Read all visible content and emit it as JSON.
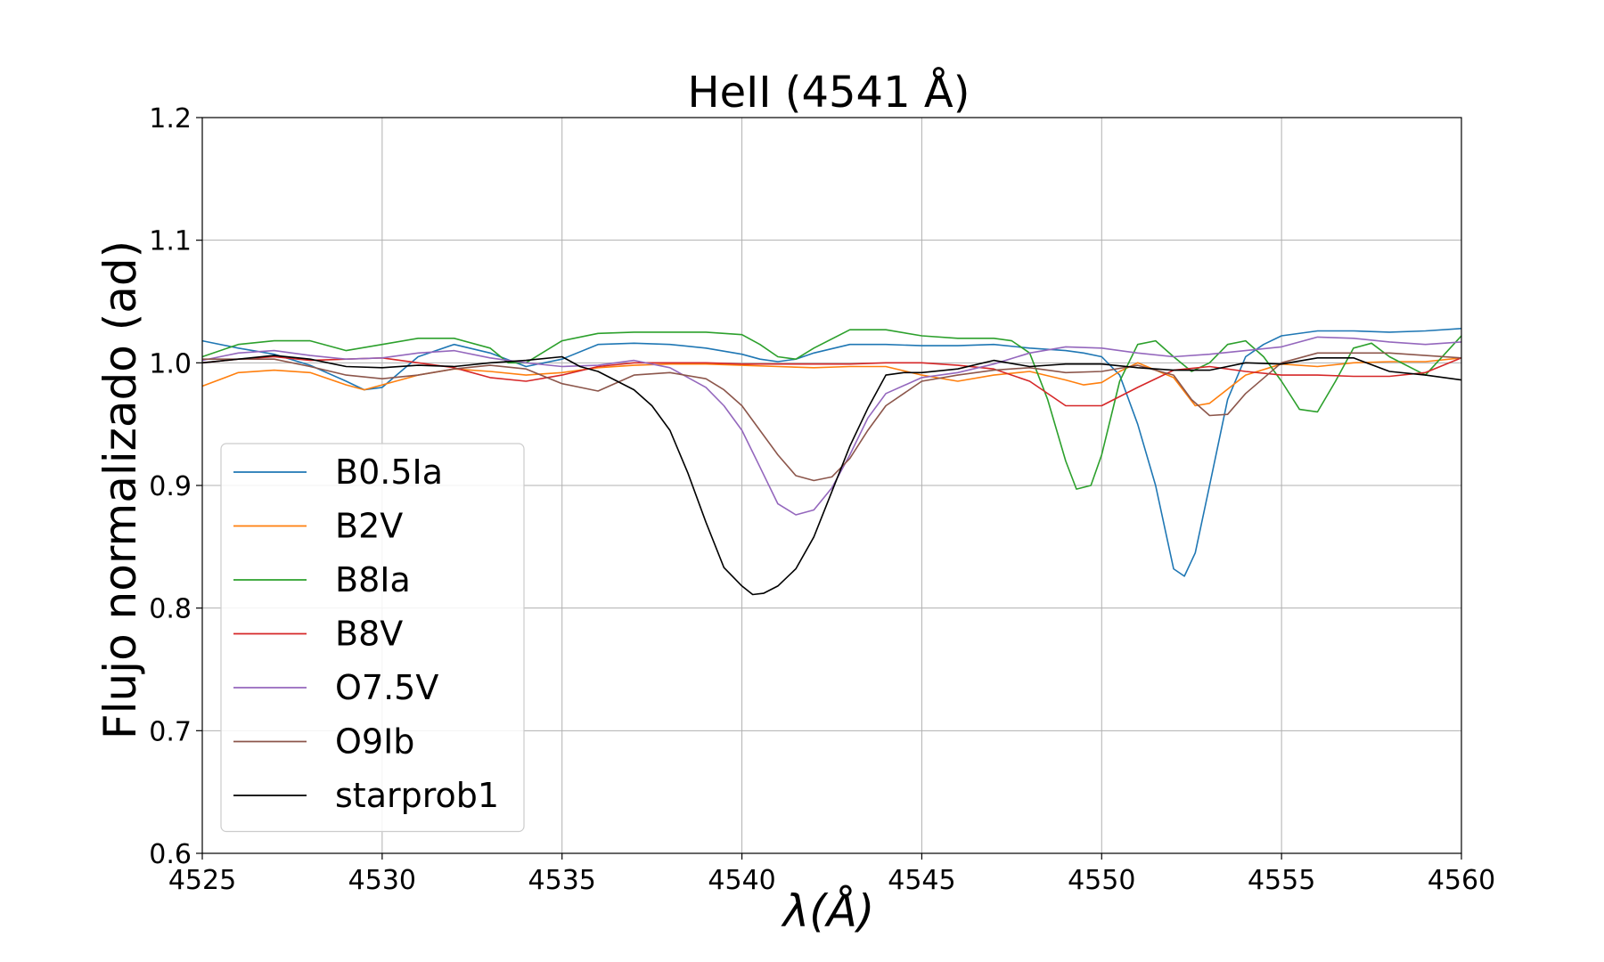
{
  "chart_data": {
    "type": "line",
    "title": "HeII (4541 Å)",
    "xlabel": "λ(Å)",
    "ylabel": "Flujo normalizado (ad)",
    "xlim": [
      4525,
      4560
    ],
    "ylim": [
      0.6,
      1.2
    ],
    "xticks": [
      "4525",
      "4530",
      "4535",
      "4540",
      "4545",
      "4550",
      "4555",
      "4560"
    ],
    "yticks": [
      "0.6",
      "0.7",
      "0.8",
      "0.9",
      "1.0",
      "1.1",
      "1.2"
    ],
    "grid": true,
    "legend_position": "lower-left",
    "series": [
      {
        "name": "B0.5Ia",
        "color": "#1f77b4",
        "x": [
          4525,
          4526,
          4527,
          4528,
          4529,
          4529.5,
          4530,
          4531,
          4532,
          4533,
          4534,
          4535,
          4536,
          4537,
          4538,
          4539,
          4540,
          4540.5,
          4541,
          4541.5,
          4542,
          4543,
          4544,
          4545,
          4546,
          4547,
          4548,
          4549,
          4549.5,
          4550,
          4550.5,
          4551,
          4551.5,
          4552,
          4552.3,
          4552.6,
          4553,
          4553.5,
          4554,
          4554.5,
          4555,
          4556,
          4557,
          4558,
          4559,
          4560
        ],
        "y": [
          1.018,
          1.012,
          1.007,
          0.998,
          0.985,
          0.978,
          0.98,
          1.005,
          1.015,
          1.008,
          0.997,
          1.003,
          1.015,
          1.016,
          1.015,
          1.012,
          1.007,
          1.003,
          1.001,
          1.003,
          1.008,
          1.015,
          1.015,
          1.014,
          1.014,
          1.015,
          1.012,
          1.01,
          1.008,
          1.005,
          0.99,
          0.95,
          0.9,
          0.832,
          0.826,
          0.845,
          0.9,
          0.97,
          1.005,
          1.015,
          1.022,
          1.026,
          1.026,
          1.025,
          1.026,
          1.028
        ]
      },
      {
        "name": "B2V",
        "color": "#ff7f0e",
        "x": [
          4525,
          4526,
          4527,
          4528,
          4529,
          4529.5,
          4530,
          4531,
          4532,
          4533,
          4534,
          4535,
          4536,
          4537,
          4538,
          4539,
          4540,
          4541,
          4542,
          4543,
          4544,
          4545,
          4546,
          4547,
          4548,
          4549,
          4549.5,
          4550,
          4550.5,
          4551,
          4552,
          4552.6,
          4553,
          4554,
          4555,
          4556,
          4557,
          4558,
          4559,
          4560
        ],
        "y": [
          0.981,
          0.992,
          0.994,
          0.992,
          0.982,
          0.978,
          0.982,
          0.99,
          0.995,
          0.993,
          0.99,
          0.992,
          0.996,
          0.998,
          0.999,
          0.999,
          0.998,
          0.997,
          0.996,
          0.997,
          0.997,
          0.99,
          0.985,
          0.99,
          0.993,
          0.986,
          0.982,
          0.984,
          0.993,
          1.0,
          0.988,
          0.965,
          0.967,
          0.99,
          0.999,
          0.997,
          1.0,
          1.001,
          1.001,
          1.004
        ]
      },
      {
        "name": "B8Ia",
        "color": "#2ca02c",
        "x": [
          4525,
          4526,
          4527,
          4528,
          4529,
          4530,
          4531,
          4532,
          4533,
          4533.5,
          4534,
          4535,
          4536,
          4537,
          4538,
          4539,
          4540,
          4540.5,
          4541,
          4541.5,
          4542,
          4543,
          4544,
          4545,
          4546,
          4547,
          4547.5,
          4548,
          4548.5,
          4549,
          4549.3,
          4549.7,
          4550,
          4550.5,
          4551,
          4551.5,
          4552,
          4552.5,
          4553,
          4553.5,
          4554,
          4554.5,
          4555,
          4555.5,
          4556,
          4556.5,
          4557,
          4557.5,
          4558,
          4559,
          4560
        ],
        "y": [
          1.005,
          1.015,
          1.018,
          1.018,
          1.01,
          1.015,
          1.02,
          1.02,
          1.012,
          1.0,
          1.0,
          1.018,
          1.024,
          1.025,
          1.025,
          1.025,
          1.023,
          1.015,
          1.005,
          1.003,
          1.012,
          1.027,
          1.027,
          1.022,
          1.02,
          1.02,
          1.018,
          1.008,
          0.97,
          0.92,
          0.897,
          0.9,
          0.925,
          0.985,
          1.015,
          1.018,
          1.005,
          0.993,
          1.0,
          1.015,
          1.018,
          1.005,
          0.985,
          0.962,
          0.96,
          0.985,
          1.012,
          1.016,
          1.005,
          0.99,
          1.022
        ]
      },
      {
        "name": "B8V",
        "color": "#d62728",
        "x": [
          4525,
          4526,
          4527,
          4528,
          4529,
          4530,
          4531,
          4532,
          4533,
          4534,
          4535,
          4536,
          4537,
          4538,
          4539,
          4540,
          4541,
          4542,
          4543,
          4544,
          4545,
          4546,
          4547,
          4548,
          4549,
          4550,
          4551,
          4552,
          4553,
          4554,
          4555,
          4556,
          4557,
          4558,
          4559,
          4560
        ],
        "y": [
          1.0,
          1.003,
          1.005,
          1.002,
          1.003,
          1.004,
          1.0,
          0.996,
          0.988,
          0.985,
          0.99,
          0.997,
          1.0,
          1.0,
          1.0,
          0.999,
          0.999,
          0.999,
          0.999,
          1.0,
          1.0,
          0.998,
          0.995,
          0.985,
          0.965,
          0.965,
          0.98,
          0.994,
          0.997,
          0.993,
          0.99,
          0.99,
          0.989,
          0.989,
          0.992,
          1.004
        ]
      },
      {
        "name": "O7.5V",
        "color": "#9467bd",
        "x": [
          4525,
          4526,
          4527,
          4528,
          4529,
          4530,
          4531,
          4532,
          4533,
          4534,
          4535,
          4536,
          4537,
          4538,
          4539,
          4539.5,
          4540,
          4540.5,
          4541,
          4541.5,
          4542,
          4542.5,
          4543,
          4543.5,
          4544,
          4545,
          4546,
          4547,
          4548,
          4549,
          4550,
          4551,
          4552,
          4553,
          4554,
          4555,
          4556,
          4557,
          4558,
          4559,
          4560
        ],
        "y": [
          1.002,
          1.008,
          1.01,
          1.006,
          1.003,
          1.004,
          1.008,
          1.01,
          1.004,
          1.0,
          0.997,
          0.998,
          1.002,
          0.996,
          0.98,
          0.965,
          0.945,
          0.915,
          0.885,
          0.876,
          0.88,
          0.898,
          0.925,
          0.955,
          0.975,
          0.988,
          0.992,
          0.999,
          1.008,
          1.013,
          1.012,
          1.008,
          1.005,
          1.007,
          1.01,
          1.013,
          1.021,
          1.02,
          1.017,
          1.015,
          1.017
        ]
      },
      {
        "name": "O9Ib",
        "color": "#8c564b",
        "x": [
          4525,
          4526,
          4527,
          4528,
          4529,
          4530,
          4531,
          4532,
          4533,
          4534,
          4535,
          4536,
          4537,
          4538,
          4539,
          4539.5,
          4540,
          4540.5,
          4541,
          4541.5,
          4542,
          4542.5,
          4543,
          4543.5,
          4544,
          4545,
          4546,
          4547,
          4548,
          4549,
          4550,
          4551,
          4552,
          4552.5,
          4553,
          4553.5,
          4554,
          4555,
          4556,
          4557,
          4558,
          4559,
          4560
        ],
        "y": [
          1.003,
          1.003,
          1.003,
          0.997,
          0.99,
          0.987,
          0.99,
          0.995,
          0.998,
          0.995,
          0.983,
          0.977,
          0.99,
          0.992,
          0.987,
          0.978,
          0.965,
          0.945,
          0.925,
          0.908,
          0.904,
          0.907,
          0.922,
          0.945,
          0.965,
          0.985,
          0.99,
          0.994,
          0.996,
          0.992,
          0.993,
          0.998,
          0.99,
          0.97,
          0.957,
          0.958,
          0.975,
          1.0,
          1.008,
          1.008,
          1.008,
          1.006,
          1.004
        ]
      },
      {
        "name": "starprob1",
        "color": "#000000",
        "x": [
          4525,
          4526,
          4527,
          4528,
          4529,
          4530,
          4531,
          4532,
          4533,
          4534,
          4535,
          4535.5,
          4536,
          4537,
          4537.5,
          4538,
          4538.5,
          4539,
          4539.5,
          4540,
          4540.3,
          4540.6,
          4541,
          4541.5,
          4542,
          4542.5,
          4543,
          4543.5,
          4544,
          4544.5,
          4545,
          4546,
          4547,
          4548,
          4549,
          4550,
          4551,
          4552,
          4553,
          4554,
          4555,
          4556,
          4557,
          4558,
          4559,
          4560
        ],
        "y": [
          1.0,
          1.003,
          1.006,
          1.003,
          0.997,
          0.996,
          0.998,
          0.997,
          1.0,
          1.002,
          1.005,
          0.997,
          0.993,
          0.978,
          0.965,
          0.945,
          0.91,
          0.87,
          0.833,
          0.818,
          0.811,
          0.812,
          0.818,
          0.832,
          0.858,
          0.895,
          0.932,
          0.963,
          0.99,
          0.992,
          0.992,
          0.995,
          1.002,
          0.997,
          0.999,
          0.999,
          0.996,
          0.994,
          0.994,
          1.0,
          0.999,
          1.004,
          1.004,
          0.993,
          0.99,
          0.986
        ]
      }
    ]
  }
}
